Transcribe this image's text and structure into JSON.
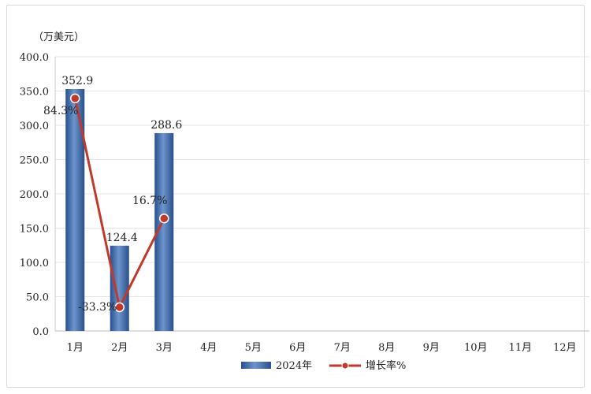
{
  "chart_data": {
    "type": "bar",
    "unit_label": "（万美元）",
    "categories": [
      "1月",
      "2月",
      "3月",
      "4月",
      "5月",
      "6月",
      "7月",
      "8月",
      "9月",
      "10月",
      "11月",
      "12月"
    ],
    "ylim": [
      0,
      400
    ],
    "yticks": [
      "0.0",
      "50.0",
      "100.0",
      "150.0",
      "200.0",
      "250.0",
      "300.0",
      "350.0",
      "400.0"
    ],
    "grid": true,
    "legend_position": "bottom",
    "series": [
      {
        "name": "2024年",
        "kind": "bar",
        "color": "#3f6fae",
        "values": [
          352.9,
          124.4,
          288.6,
          null,
          null,
          null,
          null,
          null,
          null,
          null,
          null,
          null
        ],
        "labels": [
          "352.9",
          "124.4",
          "288.6"
        ]
      },
      {
        "name": "增长率%",
        "kind": "line",
        "color": "#c0392b",
        "values": [
          84.3,
          -33.3,
          16.7,
          null,
          null,
          null,
          null,
          null,
          null,
          null,
          null,
          null
        ],
        "labels": [
          "84.3%",
          "-33.3%",
          "16.7%"
        ]
      }
    ]
  }
}
